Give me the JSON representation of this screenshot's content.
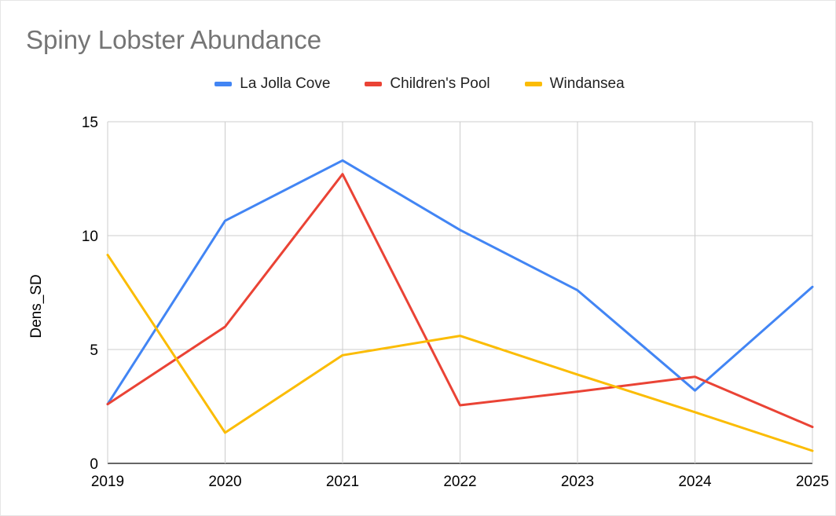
{
  "chart_data": {
    "type": "line",
    "title": "Spiny Lobster Abundance",
    "xlabel": "",
    "ylabel": "Dens_SD",
    "x": [
      "2019",
      "2020",
      "2021",
      "2022",
      "2023",
      "2024",
      "2025"
    ],
    "ylim": [
      0,
      15
    ],
    "yticks": [
      "0",
      "5",
      "10",
      "15"
    ],
    "grid": true,
    "legend_position": "top",
    "series": [
      {
        "name": "La Jolla Cove",
        "color": "#4285f4",
        "values": [
          2.6,
          10.65,
          13.3,
          10.25,
          7.6,
          3.2,
          7.75
        ]
      },
      {
        "name": "Children's Pool",
        "color": "#ea4335",
        "values": [
          2.6,
          6.0,
          12.7,
          2.55,
          3.15,
          3.8,
          1.6
        ]
      },
      {
        "name": "Windansea",
        "color": "#fbbc04",
        "values": [
          9.15,
          1.35,
          4.75,
          5.6,
          3.9,
          2.25,
          0.55
        ]
      }
    ]
  }
}
